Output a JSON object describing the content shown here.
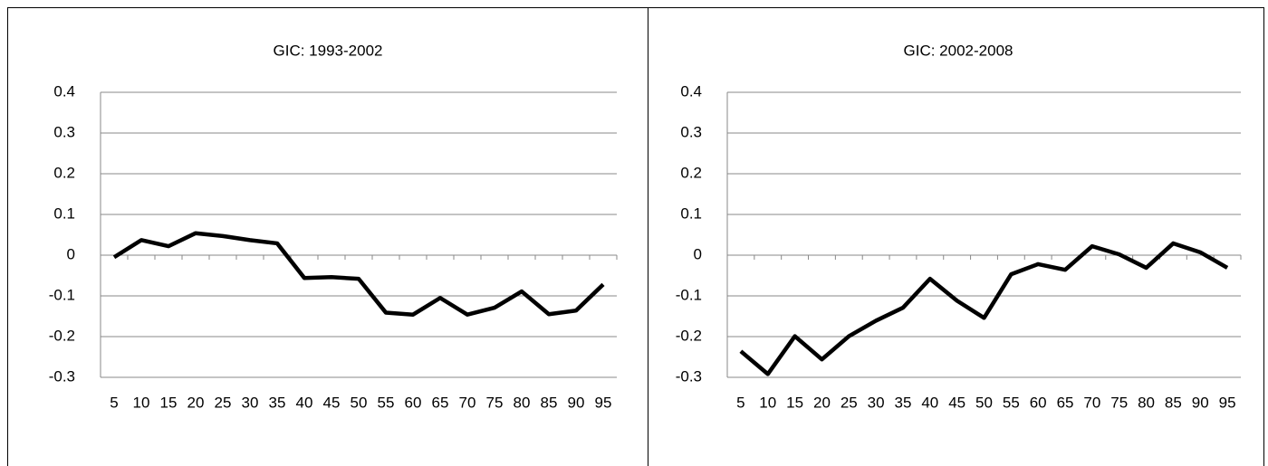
{
  "chart_data": [
    {
      "type": "line",
      "title": "GIC: 1993-2002",
      "categories": [
        "5",
        "10",
        "15",
        "20",
        "25",
        "30",
        "35",
        "40",
        "45",
        "50",
        "55",
        "60",
        "65",
        "70",
        "75",
        "80",
        "85",
        "90",
        "95"
      ],
      "series": [
        {
          "name": "GIC",
          "color": "#000000",
          "values": [
            -0.005,
            0.037,
            0.022,
            0.054,
            0.047,
            0.037,
            0.029,
            -0.056,
            -0.054,
            -0.058,
            -0.141,
            -0.146,
            -0.105,
            -0.146,
            -0.129,
            -0.089,
            -0.145,
            -0.136,
            -0.072
          ]
        }
      ],
      "ylim": [
        -0.3,
        0.4
      ],
      "yticks": [
        -0.3,
        -0.2,
        -0.1,
        0,
        0.1,
        0.2,
        0.3,
        0.4
      ],
      "grid": true
    },
    {
      "type": "line",
      "title": "GIC: 2002-2008",
      "categories": [
        "5",
        "10",
        "15",
        "20",
        "25",
        "30",
        "35",
        "40",
        "45",
        "50",
        "55",
        "60",
        "65",
        "70",
        "75",
        "80",
        "85",
        "90",
        "95"
      ],
      "series": [
        {
          "name": "GIC",
          "color": "#000000",
          "values": [
            -0.236,
            -0.292,
            -0.199,
            -0.256,
            -0.199,
            -0.161,
            -0.129,
            -0.058,
            -0.112,
            -0.154,
            -0.047,
            -0.022,
            -0.036,
            0.022,
            0.002,
            -0.031,
            0.029,
            0.007,
            -0.031
          ]
        }
      ],
      "ylim": [
        -0.3,
        0.4
      ],
      "yticks": [
        -0.3,
        -0.2,
        -0.1,
        0,
        0.1,
        0.2,
        0.3,
        0.4
      ],
      "grid": true
    }
  ]
}
